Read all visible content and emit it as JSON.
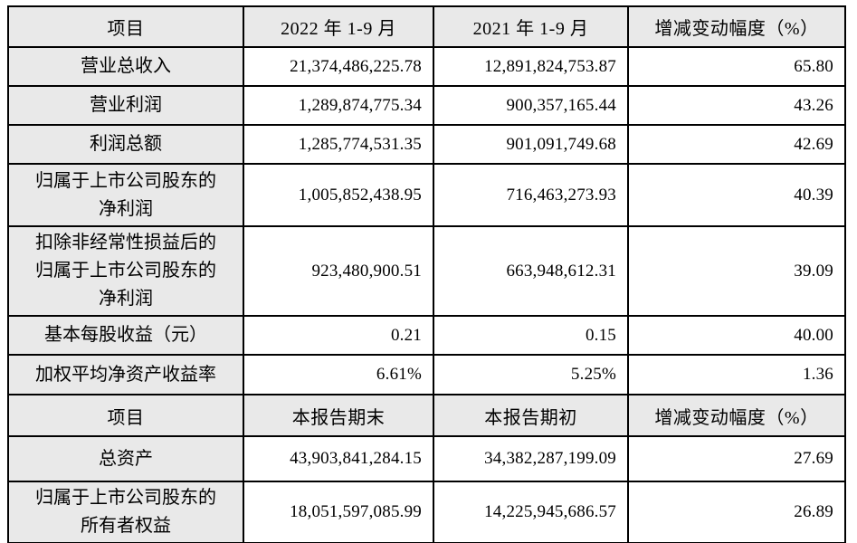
{
  "colors": {
    "header_background": "#e9e9e9",
    "label_column_background": "#e9e9e9",
    "grid_border": "#000000",
    "text": "#000000",
    "page_background": "#ffffff"
  },
  "table": {
    "sections": [
      {
        "header": {
          "item": "项目",
          "current": "2022 年 1-9 月",
          "prior": "2021 年 1-9 月",
          "change": "增减变动幅度（%）"
        },
        "rows": [
          {
            "label": "营业总收入",
            "current": "21,374,486,225.78",
            "prior": "12,891,824,753.87",
            "change": "65.80"
          },
          {
            "label": "营业利润",
            "current": "1,289,874,775.34",
            "prior": "900,357,165.44",
            "change": "43.26"
          },
          {
            "label": "利润总额",
            "current": "1,285,774,531.35",
            "prior": "901,091,749.68",
            "change": "42.69"
          },
          {
            "label": "归属于上市公司股东的\n净利润",
            "current": "1,005,852,438.95",
            "prior": "716,463,273.93",
            "change": "40.39"
          },
          {
            "label": "扣除非经常性损益后的\n归属于上市公司股东的\n净利润",
            "current": "923,480,900.51",
            "prior": "663,948,612.31",
            "change": "39.09"
          },
          {
            "label": "基本每股收益（元）",
            "current": "0.21",
            "prior": "0.15",
            "change": "40.00"
          },
          {
            "label": "加权平均净资产收益率",
            "current": "6.61%",
            "prior": "5.25%",
            "change": "1.36"
          }
        ]
      },
      {
        "header": {
          "item": "项目",
          "current": "本报告期末",
          "prior": "本报告期初",
          "change": "增减变动幅度（%）"
        },
        "rows": [
          {
            "label": "总资产",
            "current": "43,903,841,284.15",
            "prior": "34,382,287,199.09",
            "change": "27.69"
          },
          {
            "label": "归属于上市公司股东的\n所有者权益",
            "current": "18,051,597,085.99",
            "prior": "14,225,945,686.57",
            "change": "26.89"
          }
        ]
      }
    ]
  }
}
